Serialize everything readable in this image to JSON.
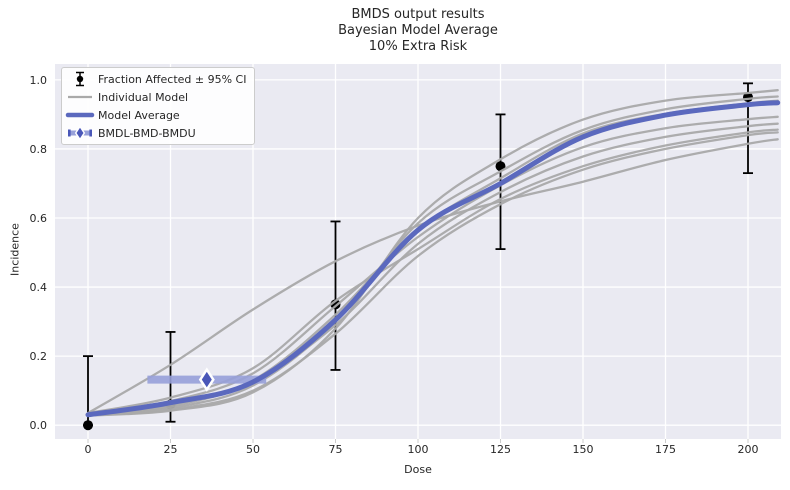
{
  "title": {
    "line1": "BMDS output results",
    "line2": "Bayesian Model Average",
    "line3": "10% Extra Risk"
  },
  "axes": {
    "xlabel": "Dose",
    "ylabel": "Incidence"
  },
  "legend": {
    "items": [
      {
        "id": "fraction-affected",
        "label": "Fraction Affected ± 95% CI"
      },
      {
        "id": "individual-model",
        "label": "Individual Model"
      },
      {
        "id": "model-average",
        "label": "Model Average"
      },
      {
        "id": "bmdl-bmd-bmdu",
        "label": "BMDL-BMD-BMDU"
      }
    ]
  },
  "colors": {
    "plot_bg": "#eaeaf2",
    "grid": "#ffffff",
    "tick": "#cccccc",
    "text": "#262626",
    "individual_model": "#a9a9a9",
    "model_average": "#5b69be",
    "bmd_bar": "#97a0d9",
    "bmd_diamond": "#4a57b8",
    "observed_point": "#000000",
    "legend_border": "#cccccc"
  },
  "chart_data": {
    "type": "line",
    "title": "BMDS output results - Bayesian Model Average - 10% Extra Risk",
    "xlabel": "Dose",
    "ylabel": "Incidence",
    "xlim": [
      -10,
      210
    ],
    "ylim": [
      -0.04,
      1.046
    ],
    "grid": true,
    "legend_position": "upper left",
    "x_ticks": [
      {
        "v": 0,
        "label": "0"
      },
      {
        "v": 25,
        "label": "25"
      },
      {
        "v": 50,
        "label": "50"
      },
      {
        "v": 75,
        "label": "75"
      },
      {
        "v": 100,
        "label": "100"
      },
      {
        "v": 125,
        "label": "125"
      },
      {
        "v": 150,
        "label": "150"
      },
      {
        "v": 175,
        "label": "175"
      },
      {
        "v": 200,
        "label": "200"
      }
    ],
    "y_ticks": [
      {
        "v": 0.0,
        "label": "0.0"
      },
      {
        "v": 0.2,
        "label": "0.2"
      },
      {
        "v": 0.4,
        "label": "0.4"
      },
      {
        "v": 0.6,
        "label": "0.6"
      },
      {
        "v": 0.8,
        "label": "0.8"
      },
      {
        "v": 1.0,
        "label": "1.0"
      }
    ],
    "observed": [
      {
        "dose": 0,
        "fraction_affected": 0.0,
        "ci_low": 0.0,
        "ci_high": 0.2
      },
      {
        "dose": 25,
        "fraction_affected": 0.06,
        "ci_low": 0.01,
        "ci_high": 0.27
      },
      {
        "dose": 75,
        "fraction_affected": 0.35,
        "ci_low": 0.16,
        "ci_high": 0.59
      },
      {
        "dose": 125,
        "fraction_affected": 0.75,
        "ci_low": 0.51,
        "ci_high": 0.9
      },
      {
        "dose": 200,
        "fraction_affected": 0.95,
        "ci_low": 0.73,
        "ci_high": 0.99
      }
    ],
    "curve_x": [
      0,
      25,
      50,
      75,
      100,
      125,
      150,
      175,
      200,
      209
    ],
    "individual_models": [
      {
        "name": "individual-1",
        "values": [
          0.035,
          0.175,
          0.335,
          0.475,
          0.578,
          0.648,
          0.705,
          0.768,
          0.815,
          0.828
        ]
      },
      {
        "name": "individual-2",
        "values": [
          0.028,
          0.042,
          0.095,
          0.28,
          0.6,
          0.77,
          0.885,
          0.94,
          0.962,
          0.97
        ]
      },
      {
        "name": "individual-3",
        "values": [
          0.03,
          0.05,
          0.115,
          0.3,
          0.585,
          0.735,
          0.855,
          0.915,
          0.945,
          0.952
        ]
      },
      {
        "name": "individual-4",
        "values": [
          0.032,
          0.06,
          0.13,
          0.32,
          0.565,
          0.715,
          0.845,
          0.902,
          0.932,
          0.94
        ]
      },
      {
        "name": "individual-5",
        "values": [
          0.035,
          0.07,
          0.15,
          0.345,
          0.545,
          0.695,
          0.805,
          0.86,
          0.886,
          0.893
        ]
      },
      {
        "name": "individual-6",
        "values": [
          0.03,
          0.055,
          0.125,
          0.29,
          0.525,
          0.675,
          0.778,
          0.835,
          0.866,
          0.873
        ]
      },
      {
        "name": "individual-7",
        "values": [
          0.035,
          0.08,
          0.165,
          0.36,
          0.51,
          0.655,
          0.75,
          0.81,
          0.848,
          0.856
        ]
      },
      {
        "name": "individual-8",
        "values": [
          0.028,
          0.045,
          0.1,
          0.265,
          0.49,
          0.64,
          0.74,
          0.8,
          0.84,
          0.848
        ]
      }
    ],
    "model_average": {
      "name": "model-average",
      "values": [
        0.03,
        0.065,
        0.125,
        0.305,
        0.565,
        0.7,
        0.835,
        0.898,
        0.928,
        0.934
      ]
    },
    "bmd": {
      "bmdl": 18,
      "bmd": 36,
      "bmdu": 54,
      "bmr_incidence": 0.132
    }
  }
}
